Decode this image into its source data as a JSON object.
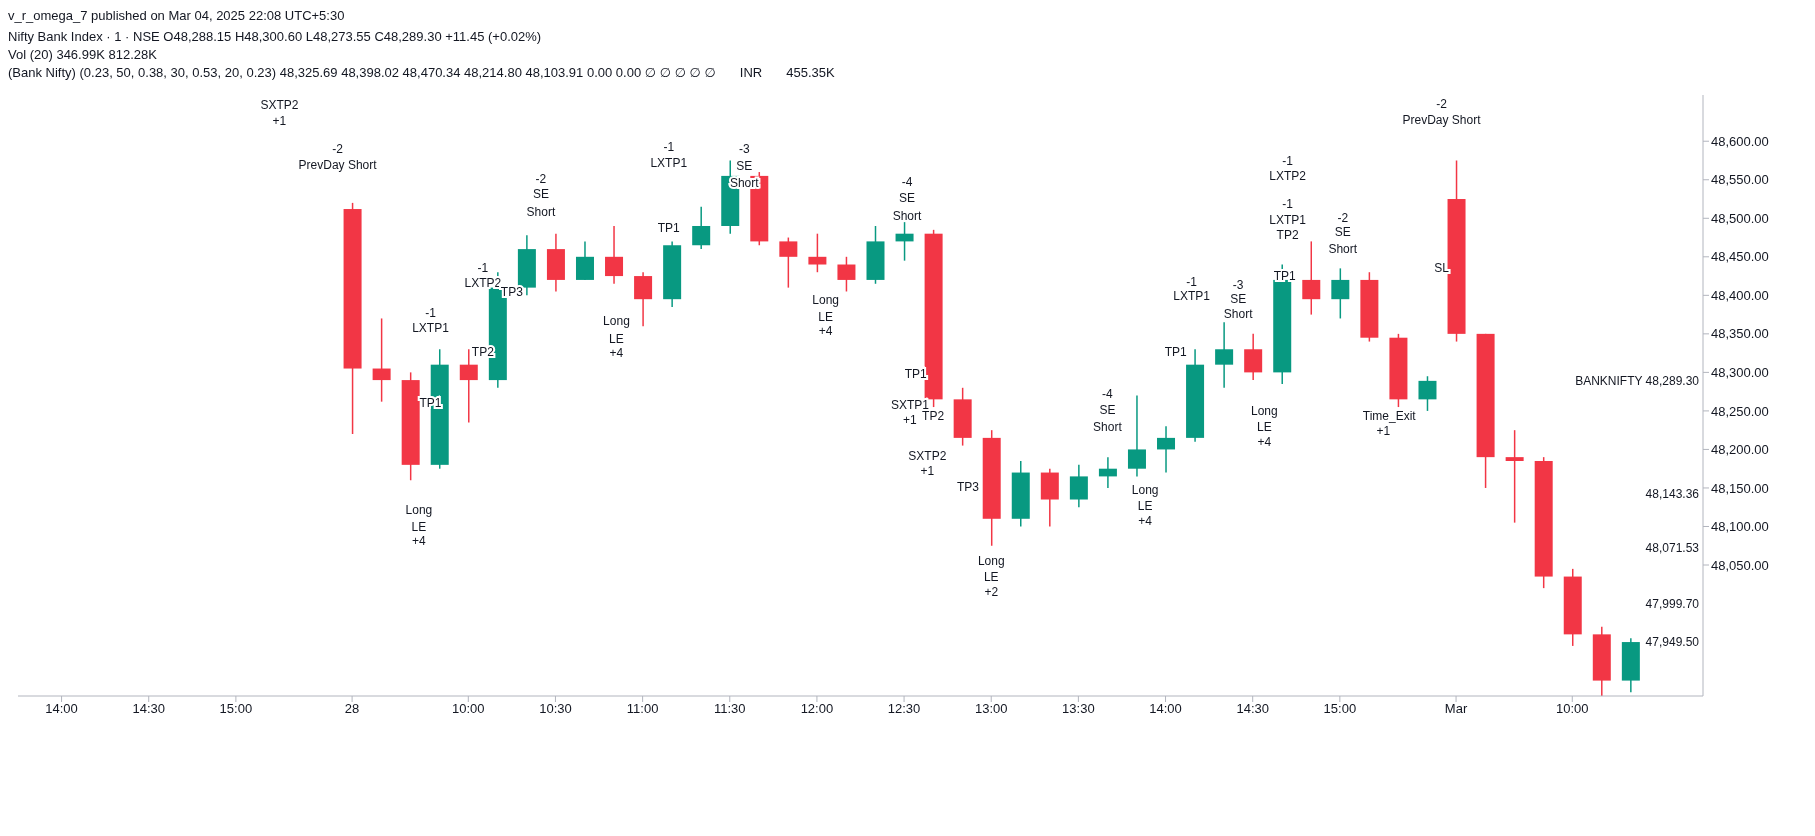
{
  "chart_data": {
    "type": "candlestick",
    "title": "Nifty Bank Index · 1 · NSE  O48,288.15  H48,300.60  L48,273.55  C48,289.30  +11.45 (+0.02%)",
    "subtitle": "Vol (20)  346.99K  812.28K",
    "categories": [
      null,
      "14:00",
      null,
      null,
      "14:30",
      null,
      null,
      "15:00",
      null,
      null,
      null,
      "28",
      null,
      null,
      null,
      "10:00",
      null,
      null,
      "10:30",
      null,
      null,
      "11:00",
      null,
      null,
      "11:30",
      null,
      null,
      "12:00",
      null,
      null,
      "12:30",
      null,
      null,
      "13:00",
      null,
      null,
      "13:30",
      null,
      null,
      "14:00",
      null,
      null,
      "14:30",
      null,
      null,
      "15:00",
      null,
      null,
      null,
      "Mar",
      null,
      null,
      null,
      "10:00",
      null,
      null
    ],
    "ohlc": [
      null,
      null,
      null,
      null,
      null,
      null,
      null,
      null,
      null,
      null,
      null,
      [
        48512,
        48520,
        48220,
        48305
      ],
      [
        48305,
        48370,
        48262,
        48290
      ],
      [
        48290,
        48300,
        48160,
        48180
      ],
      [
        48180,
        48330,
        48175,
        48310
      ],
      [
        48310,
        48330,
        48235,
        48290
      ],
      [
        48290,
        48430,
        48280,
        48410
      ],
      [
        48410,
        48478,
        48400,
        48460
      ],
      [
        48460,
        48480,
        48405,
        48420
      ],
      [
        48420,
        48470,
        48420,
        48450
      ],
      [
        48450,
        48490,
        48415,
        48425
      ],
      [
        48425,
        48430,
        48360,
        48395
      ],
      [
        48395,
        48470,
        48385,
        48465
      ],
      [
        48465,
        48515,
        48460,
        48490
      ],
      [
        48490,
        48575,
        48480,
        48555
      ],
      [
        48555,
        48560,
        48465,
        48470
      ],
      [
        48470,
        48475,
        48410,
        48450
      ],
      [
        48450,
        48480,
        48430,
        48440
      ],
      [
        48440,
        48450,
        48405,
        48420
      ],
      [
        48420,
        48490,
        48415,
        48470
      ],
      [
        48470,
        48495,
        48445,
        48480
      ],
      [
        48480,
        48485,
        48255,
        48265
      ],
      [
        48265,
        48280,
        48205,
        48215
      ],
      [
        48215,
        48225,
        48075,
        48110
      ],
      [
        48110,
        48185,
        48100,
        48170
      ],
      [
        48170,
        48175,
        48100,
        48135
      ],
      [
        48135,
        48180,
        48125,
        48165
      ],
      [
        48165,
        48190,
        48150,
        48175
      ],
      [
        48175,
        48270,
        48165,
        48200
      ],
      [
        48200,
        48230,
        48170,
        48215
      ],
      [
        48215,
        48330,
        48210,
        48310
      ],
      [
        48310,
        48365,
        48280,
        48330
      ],
      [
        48330,
        48350,
        48290,
        48300
      ],
      [
        48300,
        48440,
        48285,
        48420
      ],
      [
        48420,
        48470,
        48375,
        48395
      ],
      [
        48395,
        48435,
        48370,
        48420
      ],
      [
        48420,
        48430,
        48340,
        48345
      ],
      [
        48345,
        48350,
        48255,
        48265
      ],
      [
        48265,
        48295,
        48250,
        48289
      ],
      [
        48525,
        48575,
        48340,
        48350
      ],
      [
        48350,
        48350,
        48150,
        48190
      ],
      [
        48190,
        48225,
        48105,
        48185
      ],
      [
        48185,
        48190,
        48020,
        48035
      ],
      [
        48035,
        48045,
        47945,
        47960
      ],
      [
        47960,
        47970,
        47880,
        47900
      ],
      [
        47900,
        47955,
        47885,
        47950
      ]
    ],
    "colors": [
      null,
      null,
      null,
      null,
      null,
      null,
      null,
      null,
      null,
      null,
      null,
      "#f23645",
      "#f23645",
      "#f23645",
      "#089981",
      "#f23645",
      "#089981",
      "#089981",
      "#f23645",
      "#089981",
      "#f23645",
      "#f23645",
      "#089981",
      "#089981",
      "#089981",
      "#f23645",
      "#f23645",
      "#f23645",
      "#f23645",
      "#089981",
      "#089981",
      "#f23645",
      "#f23645",
      "#f23645",
      "#089981",
      "#f23645",
      "#089981",
      "#089981",
      "#089981",
      "#089981",
      "#089981",
      "#089981",
      "#f23645",
      "#089981",
      "#f23645",
      "#089981",
      "#f23645",
      "#f23645",
      "#089981",
      "#f23645",
      "#f23645",
      "#f23645",
      "#f23645",
      "#f23645",
      "#f23645",
      "#089981"
    ],
    "ylim": [
      47880,
      48660
    ],
    "yticks": [
      {
        "value": 48050,
        "label": "48,050.00"
      },
      {
        "value": 48100,
        "label": "48,100.00"
      },
      {
        "value": 48150,
        "label": "48,150.00"
      },
      {
        "value": 48200,
        "label": "48,200.00"
      },
      {
        "value": 48250,
        "label": "48,250.00"
      },
      {
        "value": 48300,
        "label": "48,300.00"
      },
      {
        "value": 48350,
        "label": "48,350.00"
      },
      {
        "value": 48400,
        "label": "48,400.00"
      },
      {
        "value": 48450,
        "label": "48,450.00"
      },
      {
        "value": 48500,
        "label": "48,500.00"
      },
      {
        "value": 48550,
        "label": "48,550.00"
      },
      {
        "value": 48600,
        "label": "48,600.00"
      }
    ],
    "annotations": [
      "v_r_omega_7 published on Mar 04, 2025 22:08 UTC+5:30",
      "(Bank Nifty) (0.23, 50, 0.38, 30, 0.53, 20, 0.23)  48,325.69  48,398.02  48,470.34  48,214.80  48,103.91  0.00  0.00  ∅ ∅ ∅ ∅ ∅",
      "INR",
      "455.35K",
      "BANKNIFTY 48,289.30",
      "48,143.36",
      "48,071.53",
      "47,999.70",
      "47,949.50",
      "SXTP2",
      "+1",
      "-2",
      "PrevDay Short",
      "-1",
      "LXTP1",
      "TP1",
      "Long",
      "LE",
      "+4",
      "TP2",
      "-1",
      "LXTP2",
      "TP3",
      "-2",
      "SE",
      "Short",
      "Long",
      "LE",
      "+4",
      "-1",
      "LXTP1",
      "TP1",
      "-3",
      "SE",
      "Short",
      "Long",
      "LE",
      "+4",
      "-4",
      "SE",
      "Short",
      "TP1",
      "SXTP1",
      "+1",
      "TP2",
      "SXTP2",
      "+1",
      "TP3",
      "Long",
      "LE",
      "+2",
      "-4",
      "SE",
      "Short",
      "Long",
      "LE",
      "+4",
      "-1",
      "LXTP1",
      "TP1",
      "-3",
      "SE",
      "Short",
      "Long",
      "LE",
      "+4",
      "-1",
      "LXTP2",
      "-1",
      "LXTP1",
      "TP2",
      "TP1",
      "-2",
      "SE",
      "Short",
      "Time_Exit",
      "+1",
      "SL",
      "-2",
      "PrevDay Short"
    ]
  }
}
